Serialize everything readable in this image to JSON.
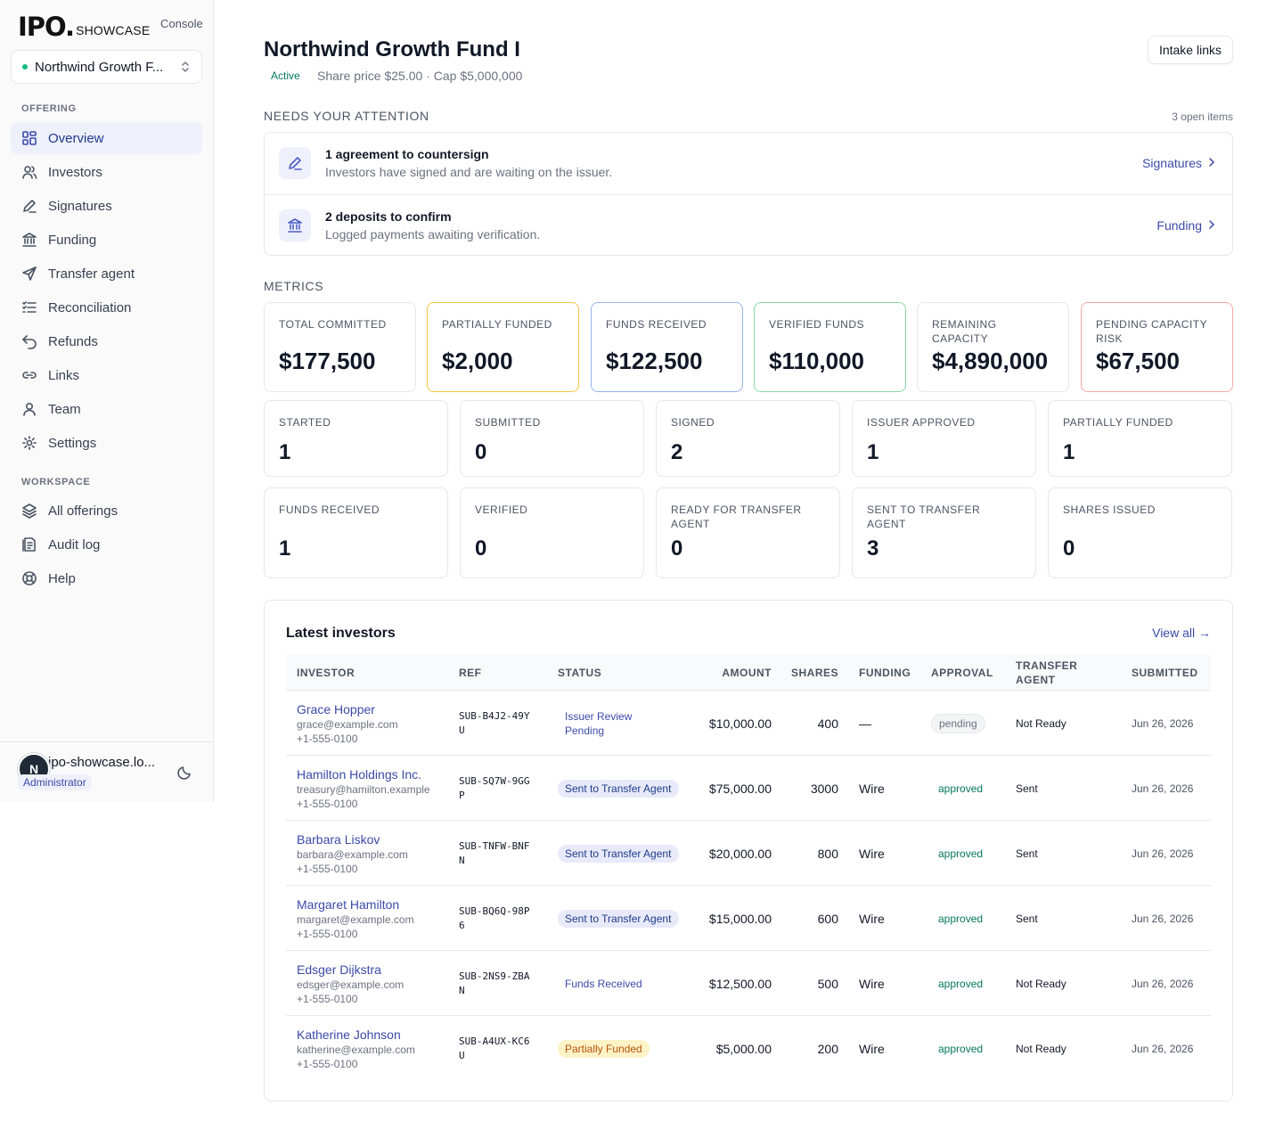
{
  "brand": {
    "mark": "IPO.",
    "sub": "SHOWCASE",
    "console": "Console"
  },
  "offering_selector": {
    "value": "Northwind Growth F..."
  },
  "nav": {
    "offering_title": "OFFERING",
    "offering_items": [
      {
        "label": "Overview",
        "icon": "grid-icon"
      },
      {
        "label": "Investors",
        "icon": "users-icon"
      },
      {
        "label": "Signatures",
        "icon": "pen-icon"
      },
      {
        "label": "Funding",
        "icon": "bank-icon"
      },
      {
        "label": "Transfer agent",
        "icon": "send-icon"
      },
      {
        "label": "Reconciliation",
        "icon": "list-check-icon"
      },
      {
        "label": "Refunds",
        "icon": "undo-icon"
      },
      {
        "label": "Links",
        "icon": "link-icon"
      },
      {
        "label": "Team",
        "icon": "team-icon"
      },
      {
        "label": "Settings",
        "icon": "gear-icon"
      }
    ],
    "workspace_title": "WORKSPACE",
    "workspace_items": [
      {
        "label": "All offerings",
        "icon": "layers-icon"
      },
      {
        "label": "Audit log",
        "icon": "log-icon"
      },
      {
        "label": "Help",
        "icon": "lifebuoy-icon"
      }
    ]
  },
  "user": {
    "initial": "N",
    "email": "ipo-showcase.lo...",
    "role": "Administrator"
  },
  "header": {
    "title": "Northwind Growth Fund I",
    "status": "Active",
    "meta": "Share price $25.00 · Cap $5,000,000",
    "intake_button": "Intake links"
  },
  "attention": {
    "title": "NEEDS YOUR ATTENTION",
    "count": "3 open items",
    "items": [
      {
        "title": "1 agreement to countersign",
        "desc": "Investors have signed and are waiting on the issuer.",
        "link": "Signatures"
      },
      {
        "title": "2 deposits to confirm",
        "desc": "Logged payments awaiting verification.",
        "link": "Funding"
      }
    ]
  },
  "metrics": {
    "title": "METRICS",
    "kpis": [
      {
        "label": "TOTAL COMMITTED",
        "value": "$177,500"
      },
      {
        "label": "PARTIALLY FUNDED",
        "value": "$2,000"
      },
      {
        "label": "FUNDS RECEIVED",
        "value": "$122,500"
      },
      {
        "label": "VERIFIED FUNDS",
        "value": "$110,000"
      },
      {
        "label": "REMAINING CAPACITY",
        "value": "$4,890,000"
      },
      {
        "label": "PENDING CAPACITY RISK",
        "value": "$67,500"
      }
    ],
    "kpi_border_colors": [
      "#e5e7eb",
      "#f5c542",
      "#93b4e8",
      "#86d9a7",
      "#e5e7eb",
      "#f3a9a0"
    ],
    "stats_row1": [
      {
        "label": "STARTED",
        "value": "1"
      },
      {
        "label": "SUBMITTED",
        "value": "0"
      },
      {
        "label": "SIGNED",
        "value": "2"
      },
      {
        "label": "ISSUER APPROVED",
        "value": "1"
      },
      {
        "label": "PARTIALLY FUNDED",
        "value": "1"
      }
    ],
    "stats_row2": [
      {
        "label": "FUNDS RECEIVED",
        "value": "1"
      },
      {
        "label": "VERIFIED",
        "value": "0"
      },
      {
        "label": "READY FOR TRANSFER AGENT",
        "value": "0"
      },
      {
        "label": "SENT TO TRANSFER AGENT",
        "value": "3"
      },
      {
        "label": "SHARES ISSUED",
        "value": "0"
      }
    ]
  },
  "latest": {
    "title": "Latest investors",
    "view_all": "View all →",
    "columns": [
      "INVESTOR",
      "REF",
      "STATUS",
      "AMOUNT",
      "SHARES",
      "FUNDING",
      "APPROVAL",
      "TRANSFER AGENT",
      "SUBMITTED"
    ],
    "rows": [
      {
        "name": "Grace Hopper",
        "email": "grace@example.com",
        "phone": "+1-555-0100",
        "ref": "SUB-B4J2-49YU",
        "status": "Issuer Review Pending",
        "status_kind": "plain",
        "amount": "$10,000.00",
        "shares": "400",
        "funding": "—",
        "approval": "pending",
        "transfer": "Not Ready",
        "submitted": "Jun 26, 2026"
      },
      {
        "name": "Hamilton Holdings Inc.",
        "email": "treasury@hamilton.example",
        "phone": "+1-555-0100",
        "ref": "SUB-SQ7W-9GGP",
        "status": "Sent to Transfer Agent",
        "status_kind": "sent",
        "amount": "$75,000.00",
        "shares": "3000",
        "funding": "Wire",
        "approval": "approved",
        "transfer": "Sent",
        "submitted": "Jun 26, 2026"
      },
      {
        "name": "Barbara Liskov",
        "email": "barbara@example.com",
        "phone": "+1-555-0100",
        "ref": "SUB-TNFW-BNFN",
        "status": "Sent to Transfer Agent",
        "status_kind": "sent",
        "amount": "$20,000.00",
        "shares": "800",
        "funding": "Wire",
        "approval": "approved",
        "transfer": "Sent",
        "submitted": "Jun 26, 2026"
      },
      {
        "name": "Margaret Hamilton",
        "email": "margaret@example.com",
        "phone": "+1-555-0100",
        "ref": "SUB-BQ6Q-98P6",
        "status": "Sent to Transfer Agent",
        "status_kind": "sent",
        "amount": "$15,000.00",
        "shares": "600",
        "funding": "Wire",
        "approval": "approved",
        "transfer": "Sent",
        "submitted": "Jun 26, 2026"
      },
      {
        "name": "Edsger Dijkstra",
        "email": "edsger@example.com",
        "phone": "+1-555-0100",
        "ref": "SUB-2NS9-ZBAN",
        "status": "Funds Received",
        "status_kind": "plain",
        "amount": "$12,500.00",
        "shares": "500",
        "funding": "Wire",
        "approval": "approved",
        "transfer": "Not Ready",
        "submitted": "Jun 26, 2026"
      },
      {
        "name": "Katherine Johnson",
        "email": "katherine@example.com",
        "phone": "+1-555-0100",
        "ref": "SUB-A4UX-KC6U",
        "status": "Partially Funded",
        "status_kind": "partial",
        "amount": "$5,000.00",
        "shares": "200",
        "funding": "Wire",
        "approval": "approved",
        "transfer": "Not Ready",
        "submitted": "Jun 26, 2026"
      }
    ]
  }
}
